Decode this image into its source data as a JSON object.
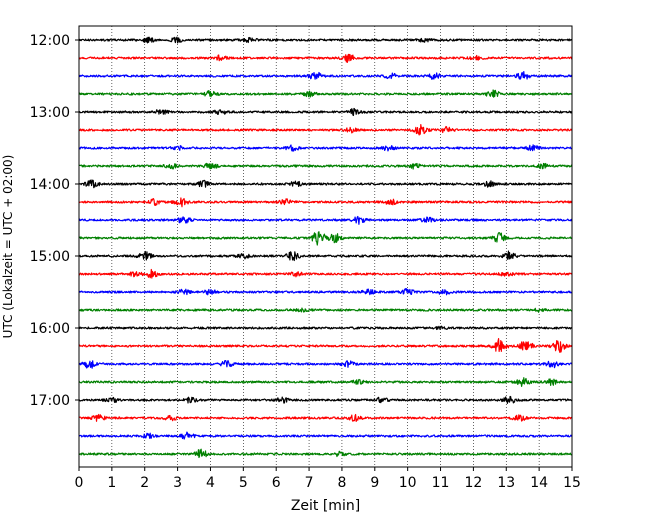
{
  "chart_data": {
    "type": "line",
    "title": "",
    "xlabel": "Zeit  [min]",
    "ylabel": "UTC (Lokalzeit = UTC + 02:00)",
    "xlim": [
      0,
      15
    ],
    "x_ticks": [
      0,
      1,
      2,
      3,
      4,
      5,
      6,
      7,
      8,
      9,
      10,
      11,
      12,
      13,
      14,
      15
    ],
    "grid": "vertical dotted",
    "legend": "none",
    "row_interval_minutes": 15,
    "rows_start": "12:00",
    "row_count": 24,
    "color_cycle": [
      "#000000",
      "#ff0000",
      "#0000ff",
      "#008000"
    ],
    "y_ticks": [
      {
        "label": "12:00",
        "row": 0
      },
      {
        "label": "13:00",
        "row": 4
      },
      {
        "label": "14:00",
        "row": 8
      },
      {
        "label": "15:00",
        "row": 12
      },
      {
        "label": "16:00",
        "row": 16
      },
      {
        "label": "17:00",
        "row": 20
      }
    ],
    "series": [
      {
        "row": 0,
        "color": "#000000",
        "bursts": [
          {
            "t": 2.1,
            "a": 0.5
          },
          {
            "t": 3.0,
            "a": 0.5
          },
          {
            "t": 5.2,
            "a": 0.4
          },
          {
            "t": 10.5,
            "a": 0.4
          }
        ]
      },
      {
        "row": 1,
        "color": "#ff0000",
        "bursts": [
          {
            "t": 4.3,
            "a": 0.5
          },
          {
            "t": 8.2,
            "a": 0.9
          },
          {
            "t": 12.1,
            "a": 0.4
          }
        ]
      },
      {
        "row": 2,
        "color": "#0000ff",
        "bursts": [
          {
            "t": 7.2,
            "a": 0.8
          },
          {
            "t": 9.5,
            "a": 0.6
          },
          {
            "t": 10.8,
            "a": 0.6
          },
          {
            "t": 13.5,
            "a": 0.8
          }
        ]
      },
      {
        "row": 3,
        "color": "#008000",
        "bursts": [
          {
            "t": 4.0,
            "a": 0.6
          },
          {
            "t": 7.0,
            "a": 0.5
          },
          {
            "t": 12.6,
            "a": 0.8
          }
        ]
      },
      {
        "row": 4,
        "color": "#000000",
        "bursts": [
          {
            "t": 2.5,
            "a": 0.5
          },
          {
            "t": 4.3,
            "a": 0.6
          },
          {
            "t": 8.4,
            "a": 0.7
          }
        ]
      },
      {
        "row": 5,
        "color": "#ff0000",
        "bursts": [
          {
            "t": 8.3,
            "a": 0.5
          },
          {
            "t": 10.4,
            "a": 1.0
          },
          {
            "t": 11.2,
            "a": 0.6
          }
        ]
      },
      {
        "row": 6,
        "color": "#0000ff",
        "bursts": [
          {
            "t": 3.0,
            "a": 0.4
          },
          {
            "t": 6.5,
            "a": 0.5
          },
          {
            "t": 9.4,
            "a": 0.5
          },
          {
            "t": 13.8,
            "a": 0.5
          }
        ]
      },
      {
        "row": 7,
        "color": "#008000",
        "bursts": [
          {
            "t": 2.8,
            "a": 0.5
          },
          {
            "t": 4.0,
            "a": 0.7
          },
          {
            "t": 10.2,
            "a": 0.5
          },
          {
            "t": 14.1,
            "a": 0.5
          }
        ]
      },
      {
        "row": 8,
        "color": "#000000",
        "bursts": [
          {
            "t": 0.4,
            "a": 0.8
          },
          {
            "t": 3.8,
            "a": 0.6
          },
          {
            "t": 6.6,
            "a": 0.5
          },
          {
            "t": 12.5,
            "a": 0.6
          }
        ]
      },
      {
        "row": 9,
        "color": "#ff0000",
        "bursts": [
          {
            "t": 2.3,
            "a": 0.6
          },
          {
            "t": 3.1,
            "a": 0.9
          },
          {
            "t": 6.3,
            "a": 0.5
          },
          {
            "t": 9.5,
            "a": 0.6
          }
        ]
      },
      {
        "row": 10,
        "color": "#0000ff",
        "bursts": [
          {
            "t": 3.2,
            "a": 0.7
          },
          {
            "t": 8.5,
            "a": 0.8
          },
          {
            "t": 10.6,
            "a": 0.5
          }
        ]
      },
      {
        "row": 11,
        "color": "#008000",
        "bursts": [
          {
            "t": 7.3,
            "a": 1.6
          },
          {
            "t": 7.8,
            "a": 0.9
          },
          {
            "t": 12.8,
            "a": 1.0
          }
        ]
      },
      {
        "row": 12,
        "color": "#000000",
        "bursts": [
          {
            "t": 2.0,
            "a": 0.9
          },
          {
            "t": 5.0,
            "a": 0.5
          },
          {
            "t": 6.5,
            "a": 0.9
          },
          {
            "t": 13.1,
            "a": 0.9
          }
        ]
      },
      {
        "row": 13,
        "color": "#ff0000",
        "bursts": [
          {
            "t": 1.7,
            "a": 0.4
          },
          {
            "t": 2.2,
            "a": 0.8
          },
          {
            "t": 6.6,
            "a": 0.4
          },
          {
            "t": 13.0,
            "a": 0.4
          }
        ]
      },
      {
        "row": 14,
        "color": "#0000ff",
        "bursts": [
          {
            "t": 3.2,
            "a": 0.5
          },
          {
            "t": 4.0,
            "a": 0.5
          },
          {
            "t": 8.8,
            "a": 0.5
          },
          {
            "t": 10.0,
            "a": 0.6
          },
          {
            "t": 11.1,
            "a": 0.5
          }
        ]
      },
      {
        "row": 15,
        "color": "#008000",
        "bursts": [
          {
            "t": 6.8,
            "a": 0.3
          },
          {
            "t": 14.0,
            "a": 0.3
          }
        ]
      },
      {
        "row": 16,
        "color": "#000000",
        "bursts": [
          {
            "t": 11.0,
            "a": 0.2
          }
        ]
      },
      {
        "row": 17,
        "color": "#ff0000",
        "bursts": [
          {
            "t": 12.8,
            "a": 1.5
          },
          {
            "t": 13.6,
            "a": 1.2
          },
          {
            "t": 14.6,
            "a": 1.3
          }
        ]
      },
      {
        "row": 18,
        "color": "#0000ff",
        "bursts": [
          {
            "t": 0.3,
            "a": 1.0
          },
          {
            "t": 4.5,
            "a": 0.6
          },
          {
            "t": 8.2,
            "a": 0.6
          },
          {
            "t": 14.4,
            "a": 0.7
          }
        ]
      },
      {
        "row": 19,
        "color": "#008000",
        "bursts": [
          {
            "t": 8.5,
            "a": 0.4
          },
          {
            "t": 13.5,
            "a": 0.8
          },
          {
            "t": 14.4,
            "a": 0.6
          }
        ]
      },
      {
        "row": 20,
        "color": "#000000",
        "bursts": [
          {
            "t": 1.0,
            "a": 0.5
          },
          {
            "t": 3.4,
            "a": 0.6
          },
          {
            "t": 6.2,
            "a": 0.5
          },
          {
            "t": 9.2,
            "a": 0.5
          },
          {
            "t": 13.1,
            "a": 0.7
          }
        ]
      },
      {
        "row": 21,
        "color": "#ff0000",
        "bursts": [
          {
            "t": 0.6,
            "a": 0.6
          },
          {
            "t": 2.8,
            "a": 0.5
          },
          {
            "t": 8.4,
            "a": 0.6
          },
          {
            "t": 13.4,
            "a": 0.6
          }
        ]
      },
      {
        "row": 22,
        "color": "#0000ff",
        "bursts": [
          {
            "t": 2.1,
            "a": 0.5
          },
          {
            "t": 3.3,
            "a": 0.7
          }
        ]
      },
      {
        "row": 23,
        "color": "#008000",
        "bursts": [
          {
            "t": 3.7,
            "a": 0.9
          },
          {
            "t": 7.9,
            "a": 0.4
          }
        ]
      }
    ]
  }
}
